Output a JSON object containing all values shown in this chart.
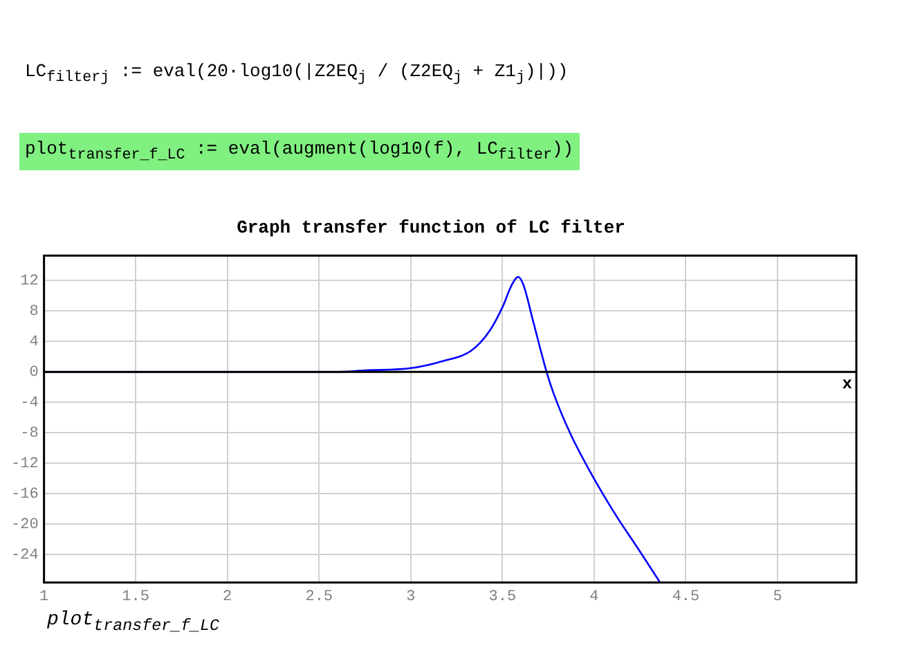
{
  "chart_data": {
    "type": "line",
    "title": "Graph transfer function of LC filter",
    "xlabel": "plot$_{transfer_f_LC}$",
    "annotations": [
      "LC$_{filter}$$_{j}$ := eval(20·log10(|Z2EQ$_{j}$ / (Z2EQ$_{j}$ + Z1$_{j}$)|))",
      "plot$_{transfer_f_LC}$ := eval(augment(log10(f), LC$_{filter}$))"
    ],
    "x": [
      1,
      2.6,
      2.75,
      3,
      3.17,
      3.33,
      3.43,
      3.5,
      3.55,
      3.586,
      3.615,
      3.666,
      3.742,
      3.78,
      3.87,
      3.994,
      4.12,
      4.247,
      4.36
    ],
    "series": [
      {
        "color": "#0000ff",
        "values": [
          0,
          0,
          0.2,
          0.5,
          1.4,
          2.8,
          5.4,
          8.5,
          11.4,
          12.5,
          11.4,
          6.8,
          -0.1,
          -2.9,
          -8.1,
          -13.8,
          -18.9,
          -23.5,
          -27.7
        ]
      }
    ],
    "xlim": [
      1,
      5.43
    ],
    "xticks": [
      1,
      1.5,
      2,
      2.5,
      3,
      3.5,
      4,
      4.5,
      5
    ],
    "ylim": [
      -27.7,
      15.3
    ],
    "yticks": [
      -24,
      -20,
      -16,
      -12,
      -8,
      -4,
      0,
      4,
      8,
      12
    ],
    "ref_lines": [
      {
        "axis": "y",
        "value": 0,
        "label": "x",
        "color": "#000000"
      }
    ],
    "grid": true,
    "legend": false,
    "marker": "none",
    "line_style": "solid"
  }
}
